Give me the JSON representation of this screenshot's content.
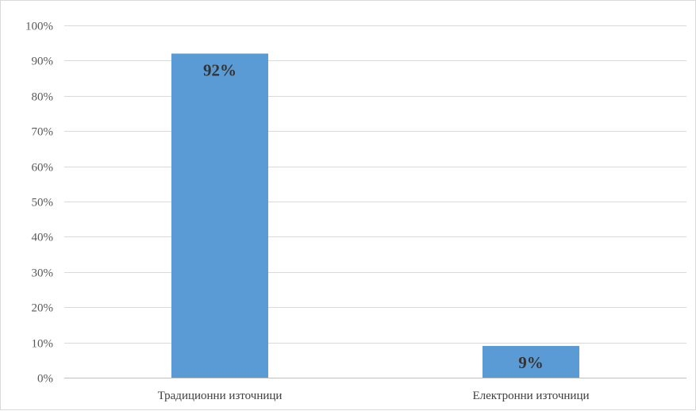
{
  "chart_data": {
    "type": "bar",
    "categories": [
      "Традиционни източници",
      "Електронни източници"
    ],
    "values": [
      92,
      9
    ],
    "data_labels": [
      "92%",
      "9%"
    ],
    "y_tick_labels": [
      "0%",
      "10%",
      "20%",
      "30%",
      "40%",
      "50%",
      "60%",
      "70%",
      "80%",
      "90%",
      "100%"
    ],
    "ylim": [
      0,
      100
    ],
    "ystep": 10,
    "grid": true,
    "legend": "none",
    "title": "",
    "xlabel": "",
    "ylabel": ""
  },
  "colors": {
    "bar": "#5b9bd5",
    "grid": "#d9d9d9",
    "axis": "#bfbfbf"
  }
}
